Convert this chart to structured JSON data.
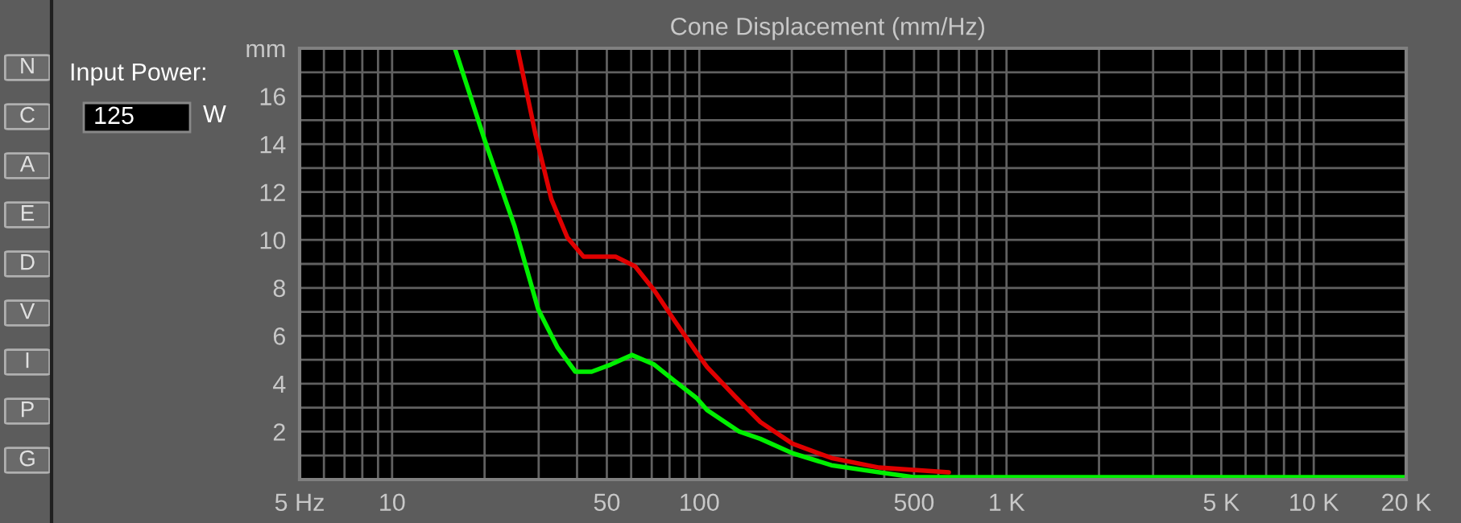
{
  "chart_data": {
    "type": "line",
    "title": "Cone Displacement (mm/Hz)",
    "log": "x",
    "grid": true,
    "marker": "none",
    "line_style": "solid",
    "xlim": [
      5,
      20000
    ],
    "ylim": [
      0,
      18
    ],
    "xticks": [
      {
        "value": 5,
        "label": "5 Hz"
      },
      {
        "value": 6,
        "label": null
      },
      {
        "value": 7,
        "label": null
      },
      {
        "value": 8,
        "label": null
      },
      {
        "value": 9,
        "label": null
      },
      10,
      {
        "value": 20,
        "label": null
      },
      {
        "value": 30,
        "label": null
      },
      {
        "value": 40,
        "label": null
      },
      50,
      {
        "value": 60,
        "label": null
      },
      {
        "value": 70,
        "label": null
      },
      {
        "value": 80,
        "label": null
      },
      {
        "value": 90,
        "label": null
      },
      100,
      {
        "value": 200,
        "label": null
      },
      {
        "value": 300,
        "label": null
      },
      {
        "value": 400,
        "label": null
      },
      500,
      {
        "value": 600,
        "label": null
      },
      {
        "value": 700,
        "label": null
      },
      {
        "value": 800,
        "label": null
      },
      {
        "value": 900,
        "label": null
      },
      {
        "value": 1000,
        "label": "1 K"
      },
      {
        "value": 2000,
        "label": null
      },
      {
        "value": 3000,
        "label": null
      },
      {
        "value": 4000,
        "label": null
      },
      {
        "value": 5000,
        "label": "5 K"
      },
      {
        "value": 6000,
        "label": null
      },
      {
        "value": 7000,
        "label": null
      },
      {
        "value": 8000,
        "label": null
      },
      {
        "value": 9000,
        "label": null
      },
      {
        "value": 10000,
        "label": "10 K"
      },
      {
        "value": 20000,
        "label": "20 K"
      }
    ],
    "yticks": [
      {
        "value": 1,
        "label": null
      },
      2,
      {
        "value": 3,
        "label": null
      },
      4,
      {
        "value": 5,
        "label": null
      },
      6,
      {
        "value": 7,
        "label": null
      },
      8,
      {
        "value": 9,
        "label": null
      },
      10,
      {
        "value": 11,
        "label": null
      },
      12,
      {
        "value": 13,
        "label": null
      },
      14,
      {
        "value": 15,
        "label": null
      },
      16,
      {
        "value": 17,
        "label": null
      },
      {
        "value": 18,
        "label": "mm"
      }
    ],
    "series": [
      {
        "color": "#e00000",
        "x": [
          25.6,
          29.3,
          33.0,
          37.2,
          42.0,
          47.3,
          53.4,
          61.8,
          71.3,
          83.4,
          98,
          106,
          130,
          158,
          201,
          269,
          385,
          649
        ],
        "values": [
          18,
          14.4,
          11.7,
          10.1,
          9.3,
          9.3,
          9.3,
          8.9,
          7.9,
          6.6,
          5.3,
          4.7,
          3.5,
          2.4,
          1.5,
          0.9,
          0.5,
          0.3
        ]
      },
      {
        "color": "#00f000",
        "x": [
          16,
          20.1,
          25,
          29.9,
          34.6,
          39.5,
          44.6,
          51.5,
          60.3,
          71.3,
          83.4,
          98,
          106,
          135,
          158,
          201,
          269,
          385,
          497,
          20000
        ],
        "values": [
          18,
          14.1,
          10.6,
          7.1,
          5.5,
          4.5,
          4.5,
          4.8,
          5.2,
          4.8,
          4.1,
          3.4,
          2.9,
          2.0,
          1.7,
          1.1,
          0.6,
          0.3,
          0.1,
          0.1
        ]
      }
    ],
    "annotations": [
      "Input Power:",
      "125",
      "W",
      "N",
      "C",
      "A",
      "E",
      "D",
      "V",
      "I",
      "P",
      "G"
    ]
  }
}
